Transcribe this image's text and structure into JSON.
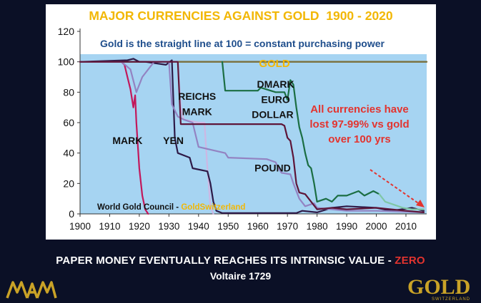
{
  "title": "MAJOR CURRENCIES AGAINST GOLD  1900 - 2020",
  "subtitle": "Gold is the straight line at 100 = constant purchasing power",
  "footer": {
    "main_prefix": "PAPER MONEY EVENTUALLY REACHES ITS INTRINSIC VALUE - ",
    "main_highlight": "ZERO",
    "sub": "Voltaire 1729"
  },
  "logos": {
    "left_text": "MAM",
    "right_text": "GOLD",
    "right_subtext": "SWITZERLAND"
  },
  "colors": {
    "background": "#0b1026",
    "plot_background": "#a6d4f2",
    "title": "#f2b705",
    "subtitle": "#1f4e8c",
    "annotation_red": "#e3342f",
    "gold_line": "#7a6f3c",
    "mark": "#c2185b",
    "reichsmark": "#cdb7e3",
    "yen": "#2e1a47",
    "pound": "#9383c2",
    "dollar": "#5e1538",
    "dmark_euro": "#1b6e43",
    "dmark_euro_late": "#7fc7a6"
  },
  "chart_data": {
    "type": "line",
    "title": "MAJOR CURRENCIES AGAINST GOLD  1900 - 2020",
    "subtitle": "Gold is the straight line at 100 = constant purchasing power",
    "xlim": [
      1900,
      2017
    ],
    "ylim": [
      0,
      120
    ],
    "xticks": [
      1900,
      1910,
      1920,
      1930,
      1940,
      1950,
      1960,
      1970,
      1980,
      1990,
      2000,
      2010
    ],
    "yticks": [
      0,
      20,
      40,
      60,
      80,
      100,
      120
    ],
    "grid": false,
    "legend": "none (series labelled directly on the chart)",
    "shaded_band": [
      0,
      105
    ],
    "annotations": {
      "gold_label": "GOLD",
      "note": [
        "All currencies have",
        "lost 97-99% vs gold",
        "over 100 yrs"
      ],
      "source_prefix": "World Gold Council - ",
      "source_highlight": "GoldSwitzerland"
    },
    "series": [
      {
        "name": "GOLD",
        "colorKey": "gold_line",
        "width": 2.4,
        "points": [
          [
            1900,
            100
          ],
          [
            2017,
            100
          ]
        ]
      },
      {
        "name": "MARK",
        "colorKey": "mark",
        "width": 2.2,
        "points": [
          [
            1900,
            100
          ],
          [
            1914,
            100
          ],
          [
            1915,
            98
          ],
          [
            1916,
            90
          ],
          [
            1917,
            82
          ],
          [
            1918,
            70
          ],
          [
            1918.6,
            78
          ],
          [
            1919,
            60
          ],
          [
            1920,
            30
          ],
          [
            1921,
            12
          ],
          [
            1922,
            3
          ],
          [
            1923,
            0
          ]
        ]
      },
      {
        "name": "REICHS MARK",
        "colorKey": "reichsmark",
        "width": 2.2,
        "points": [
          [
            1924,
            100
          ],
          [
            1933,
            100
          ],
          [
            1934,
            70
          ],
          [
            1935,
            62
          ],
          [
            1940,
            60
          ],
          [
            1942,
            60
          ],
          [
            1943,
            30
          ],
          [
            1944,
            5
          ],
          [
            1945,
            0
          ]
        ]
      },
      {
        "name": "YEN",
        "colorKey": "yen",
        "width": 2.2,
        "points": [
          [
            1900,
            100
          ],
          [
            1916,
            101
          ],
          [
            1918,
            102
          ],
          [
            1920,
            100
          ],
          [
            1922,
            100
          ],
          [
            1929,
            98
          ],
          [
            1931,
            101
          ],
          [
            1932,
            50
          ],
          [
            1933,
            40
          ],
          [
            1937,
            37
          ],
          [
            1938,
            30
          ],
          [
            1943,
            28
          ],
          [
            1944,
            20
          ],
          [
            1945,
            8
          ],
          [
            1946,
            2
          ],
          [
            1948,
            0.5
          ],
          [
            1973,
            0.5
          ],
          [
            1975,
            2
          ],
          [
            1980,
            1
          ],
          [
            1985,
            4
          ],
          [
            1990,
            5
          ],
          [
            2000,
            4
          ],
          [
            2005,
            2
          ],
          [
            2012,
            4
          ],
          [
            2016,
            2
          ]
        ]
      },
      {
        "name": "POUND",
        "colorKey": "pound",
        "width": 2.2,
        "points": [
          [
            1900,
            100
          ],
          [
            1913,
            100
          ],
          [
            1914,
            100
          ],
          [
            1917,
            95
          ],
          [
            1919,
            80
          ],
          [
            1921,
            90
          ],
          [
            1925,
            100
          ],
          [
            1930,
            100
          ],
          [
            1931,
            72
          ],
          [
            1933,
            64
          ],
          [
            1935,
            62
          ],
          [
            1938,
            60
          ],
          [
            1940,
            44
          ],
          [
            1949,
            40
          ],
          [
            1950,
            37
          ],
          [
            1963,
            36
          ],
          [
            1966,
            34
          ],
          [
            1967,
            30
          ],
          [
            1968,
            27
          ],
          [
            1971,
            26
          ],
          [
            1972,
            20
          ],
          [
            1974,
            10
          ],
          [
            1976,
            5
          ],
          [
            1979,
            7
          ],
          [
            1980,
            4
          ],
          [
            1990,
            2
          ],
          [
            2000,
            2
          ],
          [
            2016,
            1
          ]
        ]
      },
      {
        "name": "DOLLAR",
        "colorKey": "dollar",
        "width": 2.2,
        "points": [
          [
            1900,
            100
          ],
          [
            1933,
            100
          ],
          [
            1934,
            59
          ],
          [
            1968,
            59
          ],
          [
            1969,
            58
          ],
          [
            1970,
            50
          ],
          [
            1971,
            48
          ],
          [
            1972,
            37
          ],
          [
            1973,
            20
          ],
          [
            1974,
            14
          ],
          [
            1976,
            13
          ],
          [
            1978,
            8
          ],
          [
            1980,
            3
          ],
          [
            1985,
            4
          ],
          [
            1990,
            3
          ],
          [
            2000,
            4
          ],
          [
            2005,
            3
          ],
          [
            2010,
            2
          ],
          [
            2016,
            1
          ]
        ]
      },
      {
        "name": "DMARK EURO",
        "colorKey": "dmark_euro",
        "width": 2.2,
        "points": [
          [
            1948,
            100
          ],
          [
            1949,
            81
          ],
          [
            1960,
            81
          ],
          [
            1961,
            83
          ],
          [
            1966,
            80
          ],
          [
            1969,
            80
          ],
          [
            1970,
            75
          ],
          [
            1971,
            88
          ],
          [
            1972,
            85
          ],
          [
            1973,
            70
          ],
          [
            1974,
            57
          ],
          [
            1975,
            50
          ],
          [
            1976,
            40
          ],
          [
            1977,
            32
          ],
          [
            1978,
            30
          ],
          [
            1979,
            20
          ],
          [
            1980,
            8
          ],
          [
            1983,
            10
          ],
          [
            1985,
            8
          ],
          [
            1987,
            12
          ],
          [
            1990,
            12
          ],
          [
            1994,
            15
          ],
          [
            1996,
            12
          ],
          [
            1999,
            15
          ],
          [
            2001,
            13
          ]
        ]
      },
      {
        "name": "EURO (late)",
        "colorKey": "dmark_euro_late",
        "width": 2.2,
        "points": [
          [
            2001,
            13
          ],
          [
            2003,
            8
          ],
          [
            2006,
            6
          ],
          [
            2009,
            4
          ],
          [
            2012,
            3
          ],
          [
            2016,
            3
          ]
        ]
      }
    ],
    "series_labels": [
      {
        "text": "MARK",
        "x": 1916,
        "y": 46
      },
      {
        "text": "YEN",
        "x": 1931.5,
        "y": 46
      },
      {
        "text": "REICHS",
        "x": 1939.5,
        "y": 75
      },
      {
        "text": "MARK",
        "x": 1939.5,
        "y": 65
      },
      {
        "text": "POUND",
        "x": 1965,
        "y": 28
      },
      {
        "text": "DMARK",
        "x": 1966,
        "y": 83
      },
      {
        "text": "EURO",
        "x": 1966,
        "y": 73
      },
      {
        "text": "DOLLAR",
        "x": 1965,
        "y": 63
      }
    ]
  }
}
